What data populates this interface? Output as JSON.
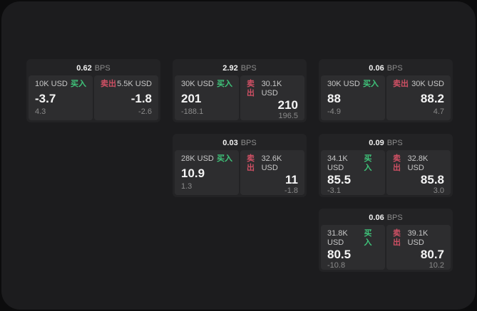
{
  "labels": {
    "bps_unit": "BPS",
    "buy": "买入",
    "sell": "卖出"
  },
  "colors": {
    "buy_green": "#3fc47a",
    "sell_red": "#cf5064",
    "surface_bg": "#1c1c1e",
    "card_bg": "#232325",
    "tile_bg": "#2d2d2f"
  },
  "cards": [
    {
      "bps": "0.62",
      "buy": {
        "size": "10K USD",
        "price": "-3.7",
        "delta": "4.3"
      },
      "sell": {
        "size": "5.5K USD",
        "price": "-1.8",
        "delta": "-2.6"
      }
    },
    {
      "bps": "2.92",
      "buy": {
        "size": "30K USD",
        "price": "201",
        "delta": "-188.1"
      },
      "sell": {
        "size": "30.1K USD",
        "price": "210",
        "delta": "196.5"
      }
    },
    {
      "bps": "0.06",
      "buy": {
        "size": "30K USD",
        "price": "88",
        "delta": "-4.9"
      },
      "sell": {
        "size": "30K USD",
        "price": "88.2",
        "delta": "4.7"
      }
    },
    {
      "bps": "0.03",
      "buy": {
        "size": "28K USD",
        "price": "10.9",
        "delta": "1.3"
      },
      "sell": {
        "size": "32.6K USD",
        "price": "11",
        "delta": "-1.8"
      }
    },
    {
      "bps": "0.09",
      "buy": {
        "size": "34.1K USD",
        "price": "85.5",
        "delta": "-3.1"
      },
      "sell": {
        "size": "32.8K USD",
        "price": "85.8",
        "delta": "3.0"
      }
    },
    {
      "bps": "0.06",
      "buy": {
        "size": "31.8K USD",
        "price": "80.5",
        "delta": "-10.8"
      },
      "sell": {
        "size": "39.1K USD",
        "price": "80.7",
        "delta": "10.2"
      }
    }
  ]
}
